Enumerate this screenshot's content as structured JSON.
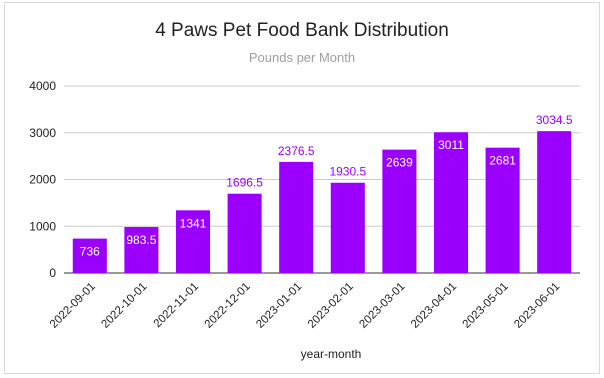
{
  "colors": {
    "bar": "#9b00ff",
    "label_inside": "#ffffff",
    "label_outside": "#9b00ff",
    "grid": "#cccccc",
    "axis": "#333333"
  },
  "chart_data": {
    "type": "bar",
    "title": "4 Paws Pet Food Bank Distribution",
    "subtitle": "Pounds per Month",
    "xlabel": "year-month",
    "ylabel": "",
    "categories": [
      "2022-09-01",
      "2022-10-01",
      "2022-11-01",
      "2022-12-01",
      "2023-01-01",
      "2023-02-01",
      "2023-03-01",
      "2023-04-01",
      "2023-05-01",
      "2023-06-01"
    ],
    "values": [
      736,
      983.5,
      1341,
      1696.5,
      2376.5,
      1930.5,
      2639,
      3011,
      2681,
      3034.5
    ],
    "data_labels": [
      "736",
      "983.5",
      "1341",
      "1696.5",
      "2376.5",
      "1930.5",
      "2639",
      "3011",
      "2681",
      "3034.5"
    ],
    "label_inside": [
      true,
      true,
      true,
      false,
      false,
      false,
      true,
      true,
      true,
      false
    ],
    "ylim": [
      0,
      4000
    ],
    "yticks": [
      "0",
      "1000",
      "2000",
      "3000",
      "4000"
    ],
    "ytick_values": [
      0,
      1000,
      2000,
      3000,
      4000
    ],
    "grid": true,
    "legend": "none"
  }
}
